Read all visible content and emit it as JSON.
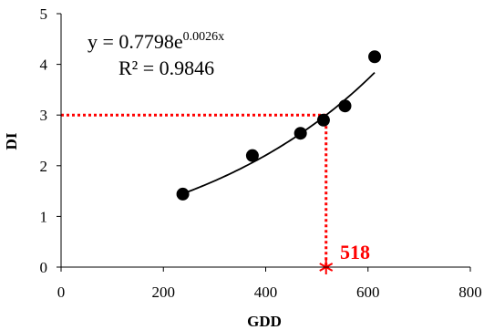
{
  "chart_data": {
    "type": "scatter",
    "title": "",
    "xlabel": "GDD",
    "ylabel": "DI",
    "xlim": [
      0,
      800
    ],
    "ylim": [
      0,
      5
    ],
    "x_ticks": [
      0,
      200,
      400,
      600,
      800
    ],
    "y_ticks": [
      0,
      1,
      2,
      3,
      4,
      5
    ],
    "x_tick_labels": [
      "0",
      "200",
      "400",
      "600",
      "800"
    ],
    "y_tick_labels": [
      "0",
      "1",
      "2",
      "3",
      "4",
      "5"
    ],
    "grid": false,
    "series": [
      {
        "x": [
          238,
          374,
          468,
          513,
          555,
          613
        ],
        "y": [
          1.44,
          2.2,
          2.64,
          2.9,
          3.18,
          4.15
        ],
        "marker": "circle",
        "color": "#000000"
      }
    ],
    "trendline": {
      "type": "exponential",
      "a": 0.7798,
      "b": 0.0026,
      "x_range": [
        238,
        613
      ],
      "color": "#000000"
    },
    "equation": {
      "prefix": "y = 0.7798e",
      "exponent": "0.0026x",
      "r_squared": "R² = 0.9846"
    },
    "reference": {
      "y_level": 3,
      "x_value": 518,
      "label": "518",
      "color": "#ff0000"
    }
  }
}
